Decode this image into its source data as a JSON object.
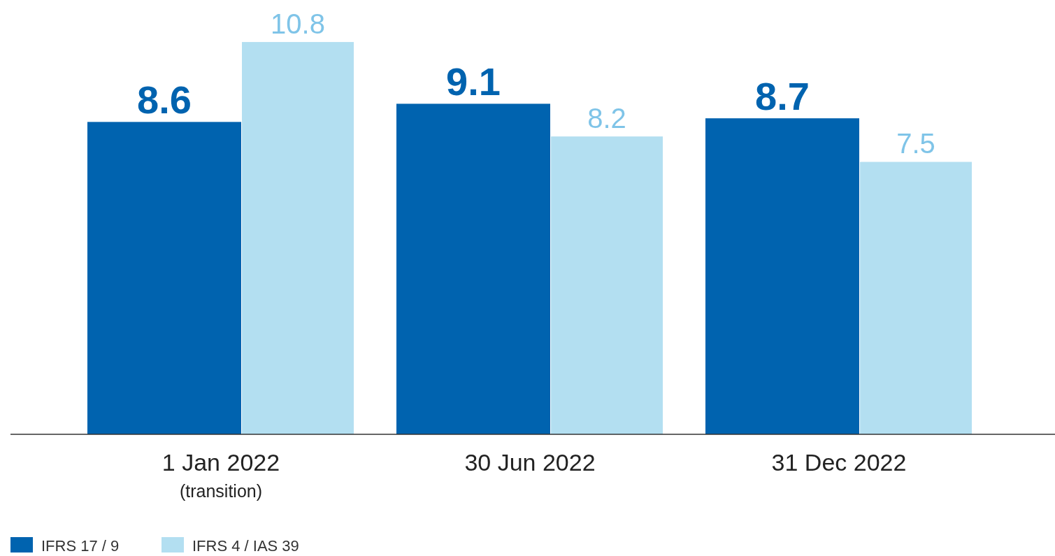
{
  "chart_data": {
    "type": "bar",
    "categories": [
      "1 Jan 2022\n(transition)",
      "30 Jun 2022",
      "31 Dec 2022"
    ],
    "series": [
      {
        "name": "IFRS 17 / 9",
        "color": "#0063af",
        "values": [
          8.6,
          9.1,
          8.7
        ]
      },
      {
        "name": "IFRS 4 / IAS 39",
        "color": "#b3dff1",
        "values": [
          10.8,
          8.2,
          7.5
        ]
      }
    ],
    "data_labels": true,
    "legend": "bottom left"
  }
}
